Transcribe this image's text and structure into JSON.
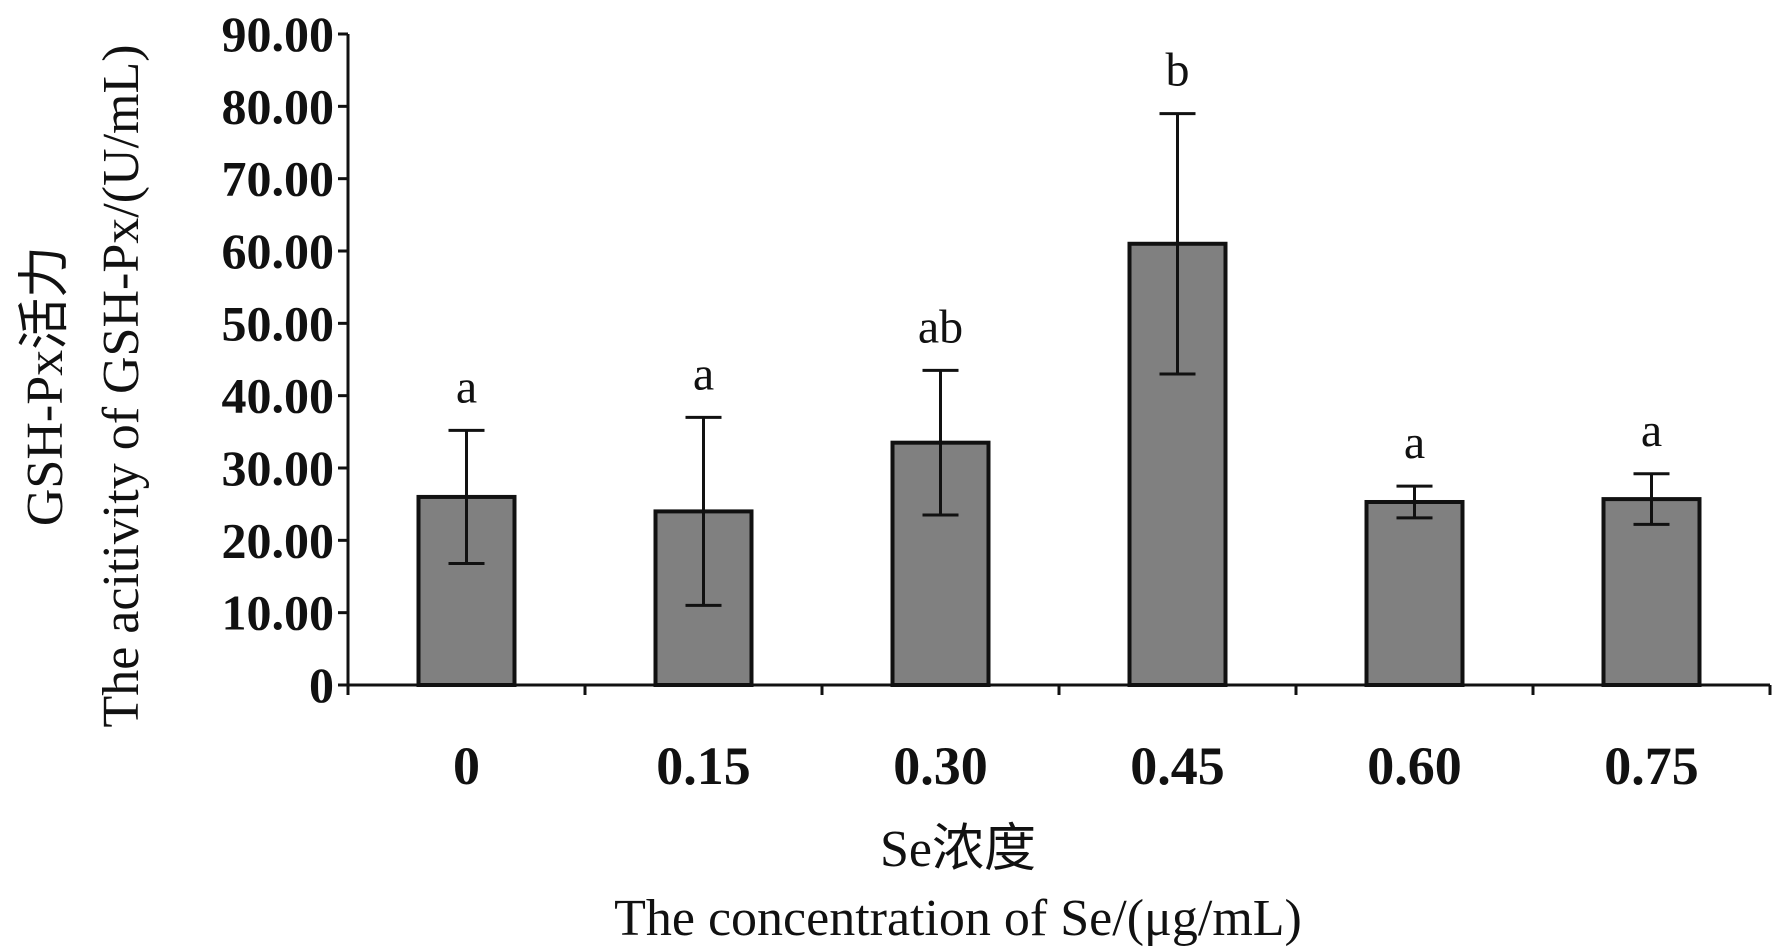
{
  "chart_data": {
    "type": "bar",
    "categories": [
      "0",
      "0.15",
      "0.30",
      "0.45",
      "0.60",
      "0.75"
    ],
    "values": [
      26.0,
      24.0,
      33.5,
      61.0,
      25.3,
      25.7
    ],
    "errors": [
      9.2,
      13.0,
      10.0,
      18.0,
      2.2,
      3.5
    ],
    "significance": [
      "a",
      "a",
      "ab",
      "b",
      "a",
      "a"
    ],
    "yticks": [
      "0",
      "10.00",
      "20.00",
      "30.00",
      "40.00",
      "50.00",
      "60.00",
      "70.00",
      "80.00",
      "90.00"
    ],
    "ylim": [
      0,
      90
    ],
    "ylabel": [
      "GSH-Px活力",
      "The acitivity of GSH-Px/(U/mL)"
    ],
    "xlabel": [
      "Se浓度",
      "The concentration of Se/(μg/mL)"
    ],
    "colors": {
      "bar": "#808080",
      "stroke": "#111111"
    },
    "grid": false
  }
}
